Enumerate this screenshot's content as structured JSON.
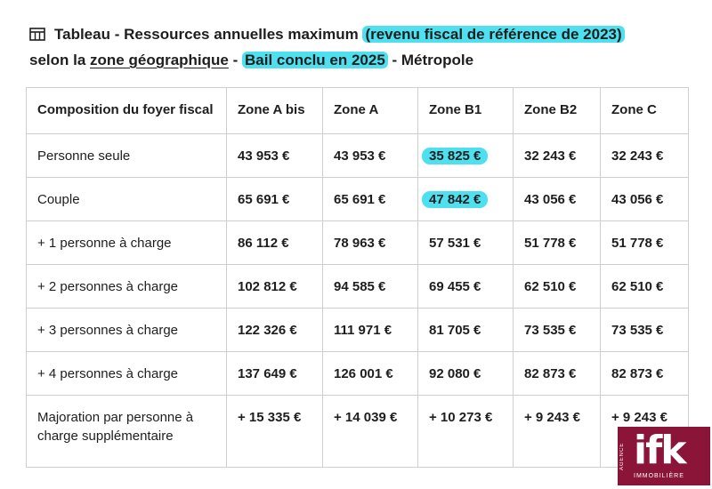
{
  "title": {
    "part1": "Tableau - Ressources annuelles maximum ",
    "highlight1": "(revenu fiscal de référence de 2023)",
    "part2": "selon la ",
    "underline1": "zone géographique",
    "part3": " - ",
    "highlight2": "Bail conclu en 2025",
    "part4": " - Métropole"
  },
  "table": {
    "headers": [
      "Composition du foyer fiscal",
      "Zone A bis",
      "Zone A",
      "Zone B1",
      "Zone B2",
      "Zone C"
    ],
    "rows": [
      [
        "Personne seule",
        "43 953 €",
        "43 953 €",
        "35 825 €",
        "32 243 €",
        "32 243 €"
      ],
      [
        "Couple",
        "65 691 €",
        "65 691 €",
        "47 842 €",
        "43 056 €",
        "43 056 €"
      ],
      [
        "+ 1 personne à charge",
        "86 112 €",
        "78 963 €",
        "57 531 €",
        "51 778 €",
        "51 778 €"
      ],
      [
        "+ 2 personnes à charge",
        "102 812 €",
        "94 585 €",
        "69 455 €",
        "62 510 €",
        "62 510 €"
      ],
      [
        "+ 3 personnes à charge",
        "122 326 €",
        "111 971 €",
        "81 705 €",
        "73 535 €",
        "73 535 €"
      ],
      [
        "+ 4 personnes à charge",
        "137 649 €",
        "126 001 €",
        "92 080 €",
        "82 873 €",
        "82 873 €"
      ],
      [
        "Majoration par personne à charge supplémentaire",
        "+ 15 335 €",
        "+ 14 039 €",
        "+ 10 273 €",
        "+ 9 243 €",
        "+ 9 243 €"
      ]
    ]
  },
  "logo": {
    "brand": "ifk",
    "side": "AGENCE",
    "sub": "IMMOBILIÈRE",
    "color": "#8a1538"
  },
  "colors": {
    "highlight": "#4fe0f0",
    "border": "#cfcfcf",
    "text": "#1e1e1e"
  }
}
